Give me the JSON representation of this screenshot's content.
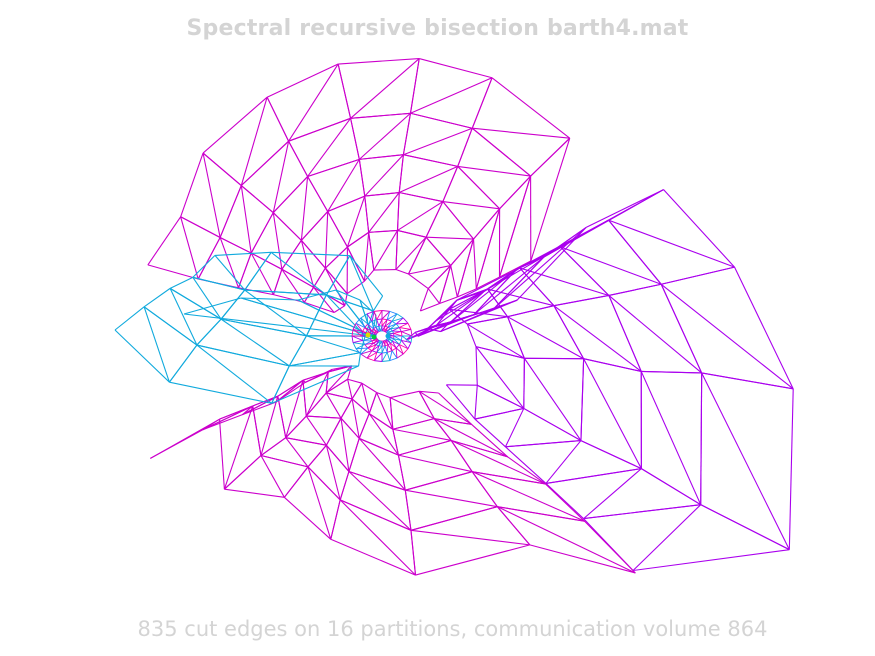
{
  "figure": {
    "title": "Spectral recursive bisection barth4.mat",
    "caption": "835 cut edges on 16 partitions, communication volume 864"
  },
  "colors": {
    "background": "#ffffff",
    "text": "#d4d4d4",
    "partition_magenta": "#cc00cc",
    "partition_pink": "#ff00aa",
    "partition_violet": "#aa00ee",
    "partition_cyan": "#11aadd",
    "partition_blue": "#2288ff",
    "partition_yellow": "#dddd00",
    "partition_green": "#00cc44"
  }
}
